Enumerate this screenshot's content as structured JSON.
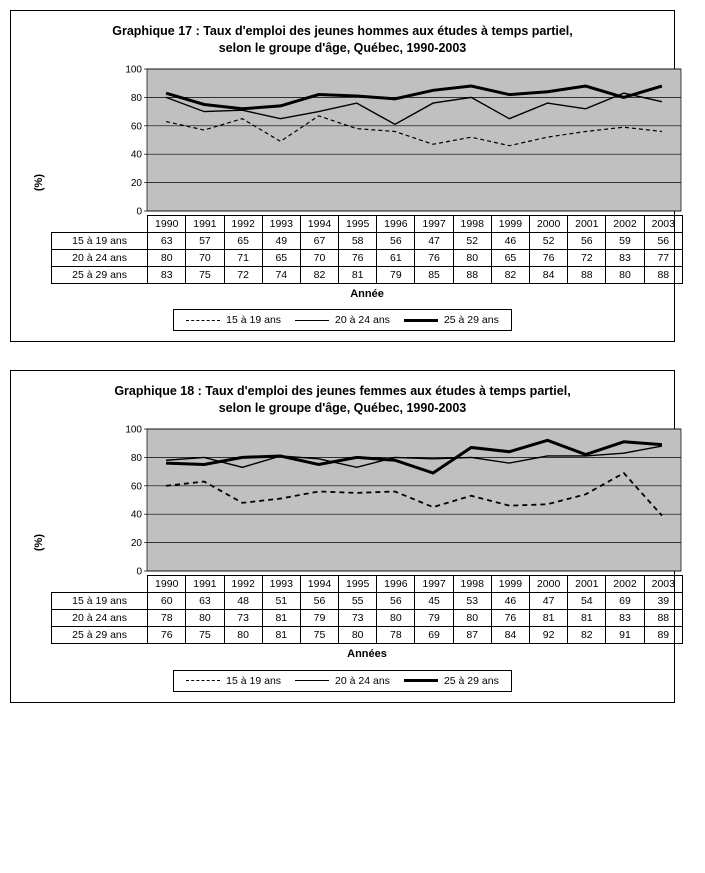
{
  "charts": [
    {
      "id": "g17",
      "title_line1": "Graphique 17 : Taux d'emploi des jeunes hommes aux études à temps partiel,",
      "title_line2": "selon le groupe d'âge, Québec, 1990-2003",
      "ylabel": "(%)",
      "xlabel": "Année",
      "years": [
        "1990",
        "1991",
        "1992",
        "1993",
        "1994",
        "1995",
        "1996",
        "1997",
        "1998",
        "1999",
        "2000",
        "2001",
        "2002",
        "2003"
      ],
      "ylim": [
        0,
        100
      ],
      "ytick_step": 20,
      "plot_bg": "#c0c0c0",
      "grid_color": "#000000",
      "series": [
        {
          "name": "15 à 19 ans",
          "style": "dashed",
          "stroke": "#000000",
          "width": 1.2,
          "dash": "4,3",
          "values": [
            63,
            57,
            65,
            49,
            67,
            58,
            56,
            47,
            52,
            46,
            52,
            56,
            59,
            56
          ]
        },
        {
          "name": "20 à 24 ans",
          "style": "thin",
          "stroke": "#000000",
          "width": 1.4,
          "dash": "",
          "values": [
            80,
            70,
            71,
            65,
            70,
            76,
            61,
            76,
            80,
            65,
            76,
            72,
            83,
            77
          ]
        },
        {
          "name": "25 à 29 ans",
          "style": "thick",
          "stroke": "#000000",
          "width": 3.0,
          "dash": "",
          "values": [
            83,
            75,
            72,
            74,
            82,
            81,
            79,
            85,
            88,
            82,
            84,
            88,
            80,
            88
          ]
        }
      ]
    },
    {
      "id": "g18",
      "title_line1": "Graphique 18 : Taux d'emploi des jeunes femmes aux études à temps partiel,",
      "title_line2": "selon le groupe d'âge, Québec, 1990-2003",
      "ylabel": "(%)",
      "xlabel": "Années",
      "years": [
        "1990",
        "1991",
        "1992",
        "1993",
        "1994",
        "1995",
        "1996",
        "1997",
        "1998",
        "1999",
        "2000",
        "2001",
        "2002",
        "2003"
      ],
      "ylim": [
        0,
        100
      ],
      "ytick_step": 20,
      "plot_bg": "#c0c0c0",
      "grid_color": "#000000",
      "series": [
        {
          "name": "15 à 19 ans",
          "style": "dashed",
          "stroke": "#000000",
          "width": 1.8,
          "dash": "5,4",
          "values": [
            60,
            63,
            48,
            51,
            56,
            55,
            56,
            45,
            53,
            46,
            47,
            54,
            69,
            39
          ]
        },
        {
          "name": "20 à 24 ans",
          "style": "thin",
          "stroke": "#000000",
          "width": 1.4,
          "dash": "",
          "values": [
            78,
            80,
            73,
            81,
            79,
            73,
            80,
            79,
            80,
            76,
            81,
            81,
            83,
            88
          ]
        },
        {
          "name": "25 à 29 ans",
          "style": "thick",
          "stroke": "#000000",
          "width": 3.0,
          "dash": "",
          "values": [
            76,
            75,
            80,
            81,
            75,
            80,
            78,
            69,
            87,
            84,
            92,
            82,
            91,
            89
          ]
        }
      ]
    }
  ],
  "typography": {
    "title_fontsize": 12.5,
    "label_fontsize": 11,
    "table_fontsize": 10.5
  }
}
